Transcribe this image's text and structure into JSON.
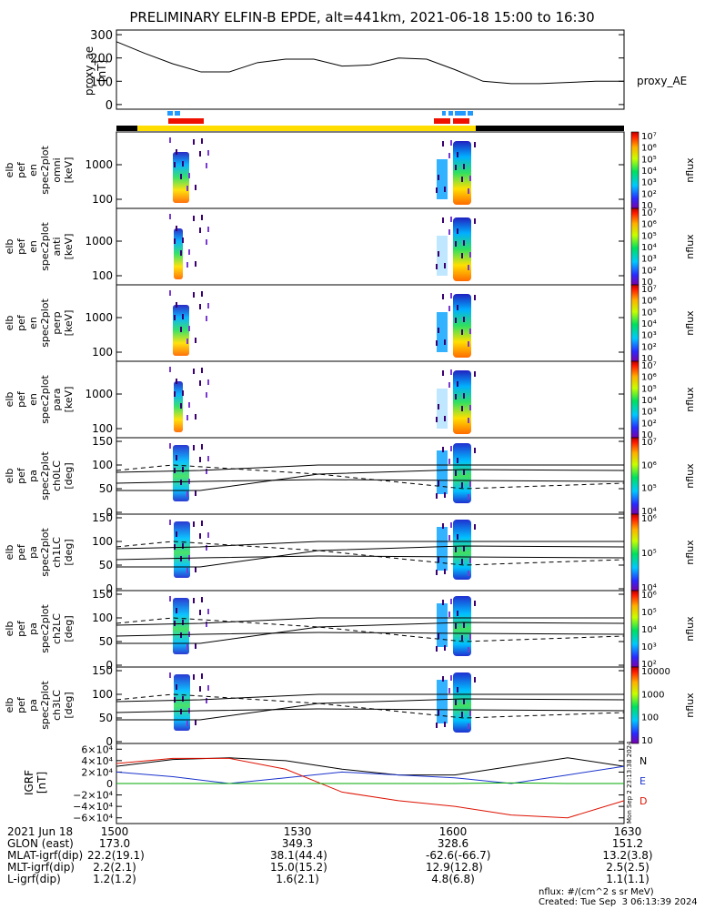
{
  "title": "PRELIMINARY ELFIN-B EPDE, alt=441km, 2021-06-18 15:00 to 16:30",
  "colors": {
    "zone_black": "#000000",
    "zone_yellow": "#ffdd00",
    "red_bar": "#ee1100",
    "blue_ticks": "#2299ff",
    "igrf_north": "#000000",
    "igrf_east": "#1a33cc",
    "igrf_down": "#dd1100",
    "igrf_mag": "#00aa00"
  },
  "chart_data": [
    {
      "type": "line",
      "panel": "proxy_ae",
      "ylabel": "proxy_ae\n[nT]",
      "yticks": [
        "0",
        "100",
        "200",
        "300"
      ],
      "ylim": [
        -20,
        320
      ],
      "legend": "proxy_AE",
      "x_minutes": [
        0,
        5,
        10,
        15,
        20,
        25,
        30,
        35,
        40,
        45,
        50,
        55,
        60,
        65,
        70,
        75,
        80,
        85,
        90
      ],
      "values": [
        270,
        220,
        175,
        140,
        140,
        180,
        195,
        195,
        165,
        170,
        200,
        195,
        150,
        100,
        90,
        90,
        95,
        100,
        100
      ]
    },
    {
      "type": "heatmap",
      "panel": "omni",
      "ylabel": "elb\npef\nen\nspec2plot\nomni\n[keV]",
      "yticks": [
        "100",
        "1000"
      ],
      "colorbar": {
        "label": "nflux",
        "ticks": [
          "10",
          "10²",
          "10³",
          "10⁴",
          "10⁵",
          "10⁶",
          "10⁷"
        ]
      }
    },
    {
      "type": "heatmap",
      "panel": "anti",
      "ylabel": "elb\npef\nen\nspec2plot\nanti\n[keV]",
      "yticks": [
        "100",
        "1000"
      ],
      "colorbar": {
        "label": "nflux",
        "ticks": [
          "10",
          "10²",
          "10³",
          "10⁴",
          "10⁵",
          "10⁶",
          "10⁷"
        ]
      }
    },
    {
      "type": "heatmap",
      "panel": "perp",
      "ylabel": "elb\npef\nen\nspec2plot\nperp\n[keV]",
      "yticks": [
        "100",
        "1000"
      ],
      "colorbar": {
        "label": "nflux",
        "ticks": [
          "10",
          "10²",
          "10³",
          "10⁴",
          "10⁵",
          "10⁶",
          "10⁷"
        ]
      }
    },
    {
      "type": "heatmap",
      "panel": "para",
      "ylabel": "elb\npef\nen\nspec2plot\npara\n[keV]",
      "yticks": [
        "100",
        "1000"
      ],
      "colorbar": {
        "label": "nflux",
        "ticks": [
          "10",
          "10²",
          "10³",
          "10⁴",
          "10⁵",
          "10⁶",
          "10⁷"
        ]
      }
    },
    {
      "type": "heatmap",
      "panel": "ch0LC",
      "ylabel": "elb\npef\npa\nspec2plot\nch0LC\n[deg]",
      "yticks": [
        "0",
        "50",
        "100",
        "150"
      ],
      "colorbar": {
        "label": "nflux",
        "ticks": [
          "10⁴",
          "10⁵",
          "10⁶",
          "10⁷"
        ]
      }
    },
    {
      "type": "heatmap",
      "panel": "ch1LC",
      "ylabel": "elb\npef\npa\nspec2plot\nch1LC\n[deg]",
      "yticks": [
        "0",
        "50",
        "100",
        "150"
      ],
      "colorbar": {
        "label": "nflux",
        "ticks": [
          "10⁴",
          "10⁵",
          "10⁶"
        ]
      }
    },
    {
      "type": "heatmap",
      "panel": "ch2LC",
      "ylabel": "elb\npef\npa\nspec2plot\nch2LC\n[deg]",
      "yticks": [
        "0",
        "50",
        "100",
        "150"
      ],
      "colorbar": {
        "label": "nflux",
        "ticks": [
          "10²",
          "10³",
          "10⁴",
          "10⁵",
          "10⁶"
        ]
      }
    },
    {
      "type": "heatmap",
      "panel": "ch3LC",
      "ylabel": "elb\npef\npa\nspec2plot\nch3LC\n[deg]",
      "yticks": [
        "0",
        "50",
        "100",
        "150"
      ],
      "colorbar": {
        "label": "nflux",
        "ticks": [
          "10",
          "100",
          "1000",
          "10000"
        ]
      }
    },
    {
      "type": "line",
      "panel": "igrf",
      "ylabel": "IGRF\n[nT]",
      "yticks": [
        "−6×10⁴",
        "−4×10⁴",
        "−2×10⁴",
        "0",
        "2×10⁴",
        "4×10⁴",
        "6×10⁴"
      ],
      "ylim": [
        -70000,
        70000
      ],
      "legend": [
        "N",
        "E",
        "D"
      ],
      "x_minutes": [
        0,
        10,
        20,
        30,
        40,
        50,
        60,
        70,
        80,
        90
      ],
      "series": [
        {
          "name": "N",
          "values": [
            30000,
            42000,
            45000,
            40000,
            25000,
            15000,
            15000,
            30000,
            45000,
            30000
          ]
        },
        {
          "name": "E",
          "values": [
            20000,
            12000,
            0,
            10000,
            20000,
            15000,
            10000,
            0,
            15000,
            30000
          ]
        },
        {
          "name": "D",
          "values": [
            35000,
            44000,
            44000,
            25000,
            -15000,
            -30000,
            -40000,
            -55000,
            -60000,
            -30000
          ]
        },
        {
          "values": [
            0,
            0,
            0,
            0,
            0,
            0,
            0,
            1000,
            0,
            0
          ]
        }
      ]
    }
  ],
  "x_axis": {
    "tick_labels": [
      "1500",
      "1530",
      "1600",
      "1630"
    ],
    "rows": [
      {
        "label": "2021 Jun 18",
        "values": [
          "1500",
          "1530",
          "1600",
          "1630"
        ]
      },
      {
        "label": "GLON (east)",
        "values": [
          "173.0",
          "349.3",
          "328.6",
          "151.2"
        ]
      },
      {
        "label": "MLAT-igrf(dip)",
        "values": [
          "22.2(19.1)",
          "38.1(44.4)",
          "-62.6(-66.7)",
          "13.2(3.8)"
        ]
      },
      {
        "label": "MLT-igrf(dip)",
        "values": [
          "2.2(2.1)",
          "15.0(15.2)",
          "12.9(12.8)",
          "2.5(2.5)"
        ]
      },
      {
        "label": "L-igrf(dip)",
        "values": [
          "1.2(1.2)",
          "1.6(2.1)",
          "4.8(6.8)",
          "1.1(1.1)"
        ]
      }
    ]
  },
  "footer": {
    "unit_note": "nflux: #/(cm^2 s sr MeV)",
    "created": "Created: Tue Sep  3 06:13:39 2024",
    "side_stamp": "Mon Sep  2 23:13:38 2024"
  }
}
